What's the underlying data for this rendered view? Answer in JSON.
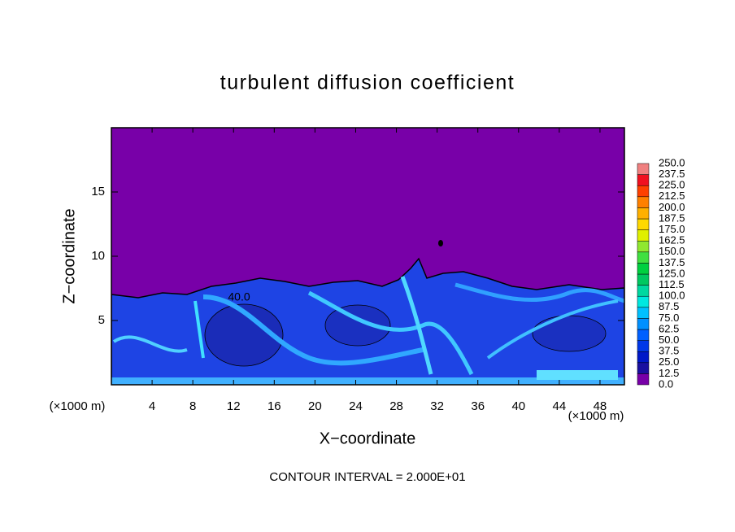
{
  "chart_data": {
    "type": "contour",
    "title": "turbulent diffusion coefficient",
    "x_label": "X−coordinate",
    "y_label": "Z−coordinate",
    "x_unit_left": "(×1000 m)",
    "x_unit_right": "(×1000 m)",
    "footer": "CONTOUR INTERVAL = 2.000E+01",
    "contour_label": "40.0",
    "background_color": "#7800a8",
    "xlim": [
      0,
      50.4
    ],
    "xticks": [
      4,
      8,
      12,
      16,
      20,
      24,
      28,
      32,
      36,
      40,
      44,
      48
    ],
    "ylim": [
      0,
      20
    ],
    "yticks": [
      5,
      10,
      15
    ],
    "colorbar": {
      "ticks": [
        {
          "value": 0,
          "label": "0.0"
        },
        {
          "value": 12.5,
          "label": "12.5"
        },
        {
          "value": 25,
          "label": "25.0"
        },
        {
          "value": 37.5,
          "label": "37.5"
        },
        {
          "value": 50,
          "label": "50.0"
        },
        {
          "value": 62.5,
          "label": "62.5"
        },
        {
          "value": 75,
          "label": "75.0"
        },
        {
          "value": 87.5,
          "label": "87.5"
        },
        {
          "value": 100,
          "label": "100.0"
        },
        {
          "value": 112.5,
          "label": "112.5"
        },
        {
          "value": 125,
          "label": "125.0"
        },
        {
          "value": 137.5,
          "label": "137.5"
        },
        {
          "value": 150,
          "label": "150.0"
        },
        {
          "value": 162.5,
          "label": "162.5"
        },
        {
          "value": 175,
          "label": "175.0"
        },
        {
          "value": 187.5,
          "label": "187.5"
        },
        {
          "value": 200,
          "label": "200.0"
        },
        {
          "value": 212.5,
          "label": "212.5"
        },
        {
          "value": 225,
          "label": "225.0"
        },
        {
          "value": 237.5,
          "label": "237.5"
        },
        {
          "value": 250,
          "label": "250.0"
        }
      ],
      "colors": [
        "#7800a8",
        "#1a10a0",
        "#0018c8",
        "#0038e8",
        "#0060ff",
        "#0090ff",
        "#00c0ff",
        "#00e8e0",
        "#00d8a0",
        "#00c860",
        "#00d040",
        "#40e040",
        "#90e830",
        "#e0f000",
        "#ffd800",
        "#ffb000",
        "#ff8000",
        "#ff4000",
        "#f01020",
        "#f08080"
      ]
    }
  }
}
